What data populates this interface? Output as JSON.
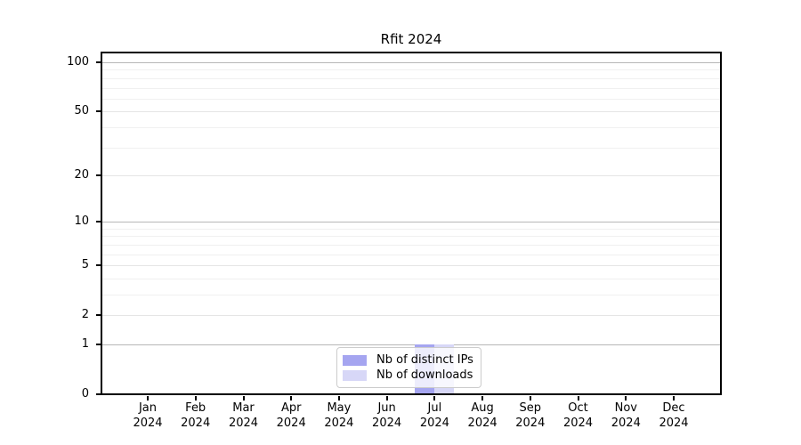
{
  "chart_data": {
    "type": "bar",
    "title": "Rfit 2024",
    "categories": [
      "Jan",
      "Feb",
      "Mar",
      "Apr",
      "May",
      "Jun",
      "Jul",
      "Aug",
      "Sep",
      "Oct",
      "Nov",
      "Dec"
    ],
    "year_label": "2024",
    "series": [
      {
        "name": "Nb of distinct IPs",
        "color": "#a5a5f0",
        "values": [
          0,
          0,
          0,
          0,
          0,
          0,
          1,
          0,
          0,
          0,
          0,
          0
        ]
      },
      {
        "name": "Nb of downloads",
        "color": "#d7d7f7",
        "values": [
          0,
          0,
          0,
          0,
          0,
          0,
          1,
          0,
          0,
          0,
          0,
          0
        ]
      }
    ],
    "y_scale": "log1p",
    "ylim": [
      0,
      100
    ],
    "y_ticks": [
      0,
      1,
      2,
      5,
      10,
      20,
      50,
      100
    ],
    "y_decade_gridlines": [
      1,
      10,
      100
    ],
    "y_minor_gridlines": [
      3,
      4,
      6,
      7,
      8,
      9,
      30,
      40,
      60,
      70,
      80,
      90
    ],
    "legend": {
      "position": "lower center"
    },
    "grid": true
  }
}
